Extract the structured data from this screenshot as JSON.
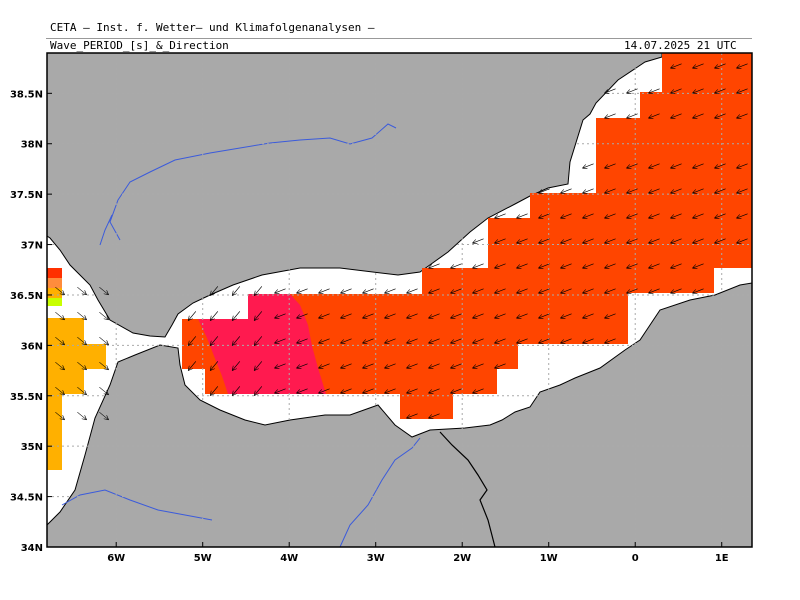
{
  "header": {
    "organization": "CETA – Inst. f. Wetter– und Klimafolgenanalysen –",
    "parameter": "Wave_PERIOD_[s]_&_Direction",
    "valid_time": "14.07.2025 21 UTC"
  },
  "map": {
    "lat_range": [
      34.0,
      38.9
    ],
    "lon_range": [
      -6.8,
      1.35
    ],
    "x_ticks": [
      {
        "lon": -6,
        "label": "6W"
      },
      {
        "lon": -5,
        "label": "5W"
      },
      {
        "lon": -4,
        "label": "4W"
      },
      {
        "lon": -3,
        "label": "3W"
      },
      {
        "lon": -2,
        "label": "2W"
      },
      {
        "lon": -1,
        "label": "1W"
      },
      {
        "lon": 0,
        "label": "0"
      },
      {
        "lon": 1,
        "label": "1E"
      }
    ],
    "y_ticks": [
      {
        "lat": 34.0,
        "label": "34N"
      },
      {
        "lat": 34.5,
        "label": "34.5N"
      },
      {
        "lat": 35.0,
        "label": "35N"
      },
      {
        "lat": 35.5,
        "label": "35.5N"
      },
      {
        "lat": 36.0,
        "label": "36N"
      },
      {
        "lat": 36.5,
        "label": "36.5N"
      },
      {
        "lat": 37.0,
        "label": "37N"
      },
      {
        "lat": 37.5,
        "label": "37.5N"
      },
      {
        "lat": 38.0,
        "label": "38N"
      },
      {
        "lat": 38.5,
        "label": "38.5N"
      }
    ],
    "colors": {
      "land": "#a9a9a9",
      "sea": "#ffffff",
      "coast": "#000000",
      "rivers": "#3b5bdb",
      "period_orange_red": "#ff4500",
      "period_crimson": "#ff1a4f",
      "period_amber": "#ffb000",
      "period_bright_red": "#ff3000",
      "period_light_orange": "#ff8c3c",
      "period_yellow_green": "#c8ff00",
      "grid": "#aaaaaa",
      "arrow": "#000000"
    }
  }
}
